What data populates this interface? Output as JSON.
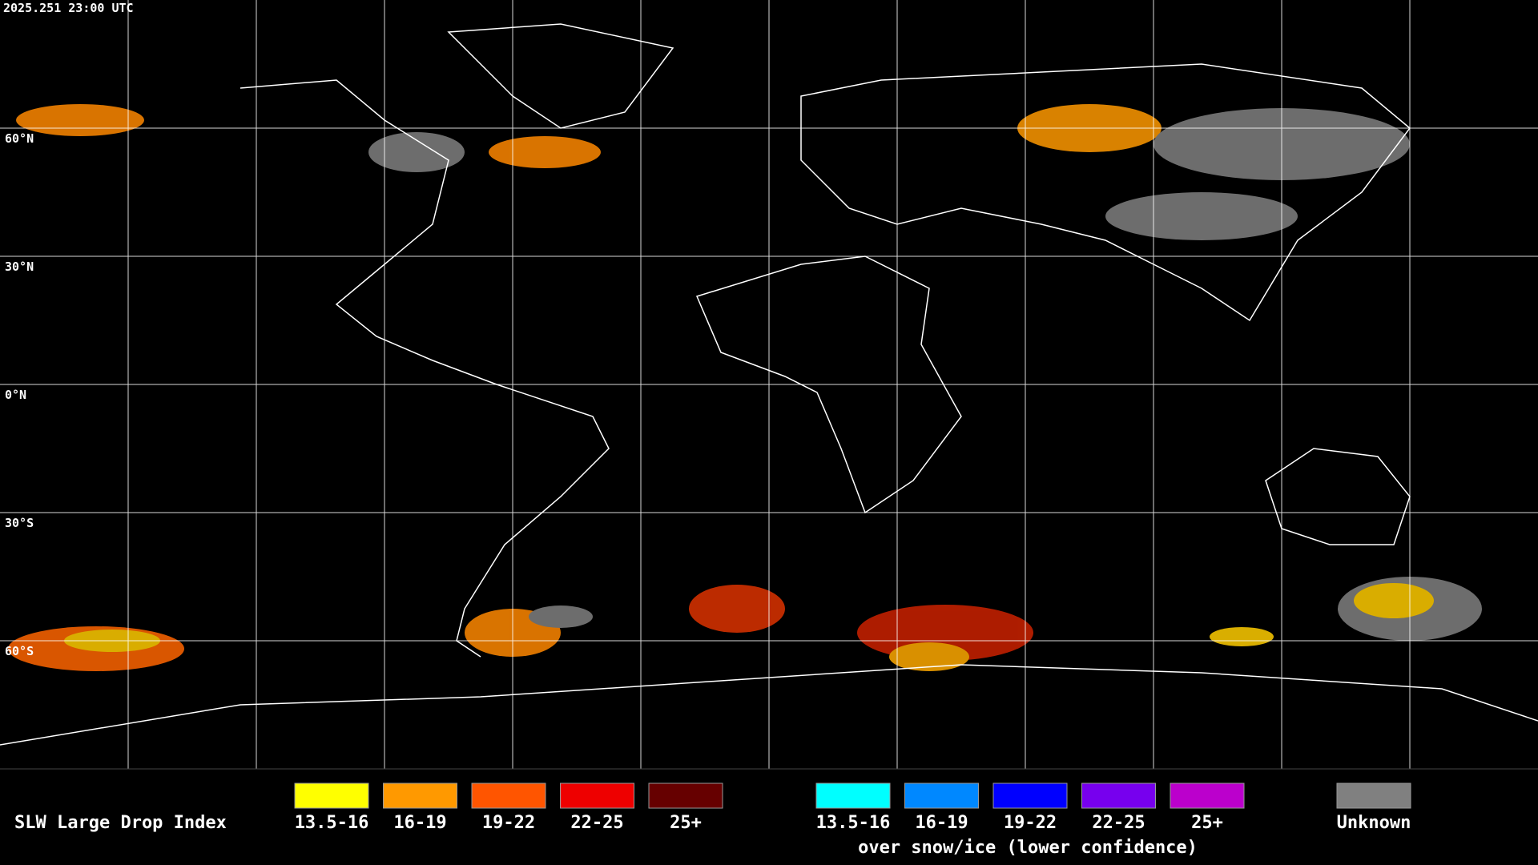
{
  "timestamp": "2025.251 23:00 UTC",
  "latitude_labels": [
    "60°N",
    "30°N",
    "0°N",
    "30°S",
    "60°S"
  ],
  "legend": {
    "title": "SLW Large Drop Index",
    "groups": [
      {
        "items": [
          {
            "label": "13.5-16",
            "color": "#ffff00"
          },
          {
            "label": "16-19",
            "color": "#ff9900"
          },
          {
            "label": "19-22",
            "color": "#ff5500"
          },
          {
            "label": "22-25",
            "color": "#ee0000"
          },
          {
            "label": "25+",
            "color": "#660000"
          }
        ]
      },
      {
        "caption": "over snow/ice (lower confidence)",
        "items": [
          {
            "label": "13.5-16",
            "color": "#00ffff"
          },
          {
            "label": "16-19",
            "color": "#0088ff"
          },
          {
            "label": "19-22",
            "color": "#0000ff"
          },
          {
            "label": "22-25",
            "color": "#7700ee"
          },
          {
            "label": "25+",
            "color": "#bb00cc"
          }
        ]
      },
      {
        "items": [
          {
            "label": "Unknown",
            "color": "#808080"
          }
        ]
      }
    ]
  }
}
